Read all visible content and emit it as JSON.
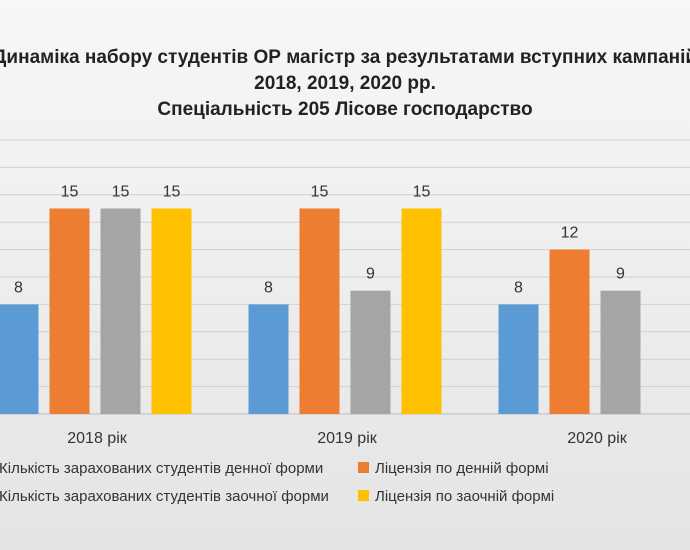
{
  "chart_data": {
    "type": "bar",
    "title": "Динаміка набору студентів ОР магістр за результатами вступних кампаній",
    "subtitle": "2018, 2019, 2020 рр.",
    "subtitle2": "Спеціальність 205 Лісове господарство",
    "categories": [
      "2018 рік",
      "2019 рік",
      "2020 рік"
    ],
    "series": [
      {
        "name": "Кількість зарахованих студентів денної форми",
        "color": "#5b9bd5",
        "values": [
          8,
          8,
          8
        ]
      },
      {
        "name": "Ліцензія по денній формі",
        "color": "#ed7d31",
        "values": [
          15,
          15,
          12
        ]
      },
      {
        "name": "Кількість зарахованих студентів заочної форми",
        "color": "#a5a5a5",
        "values": [
          15,
          9,
          9
        ]
      },
      {
        "name": "Ліцензія по заочній формі",
        "color": "#ffc000",
        "values": [
          15,
          15,
          null
        ]
      }
    ],
    "ylim": [
      0,
      20
    ],
    "grid": true,
    "legend": "bottom"
  }
}
